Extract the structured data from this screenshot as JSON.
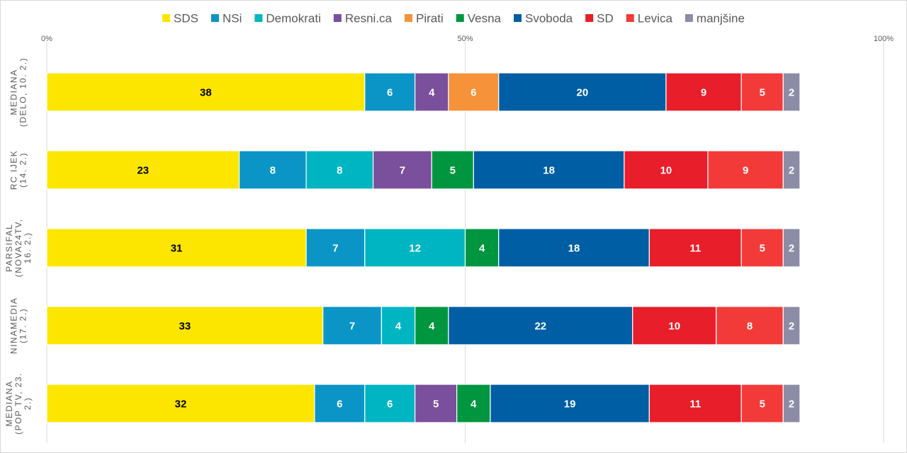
{
  "chart_data": {
    "type": "bar",
    "orientation": "horizontal",
    "stacked": true,
    "title": "",
    "xlabel": "",
    "ylabel": "",
    "xlim": [
      0,
      100
    ],
    "x_ticks": [
      "0%",
      "50%",
      "100%"
    ],
    "grid": true,
    "legend_position": "top",
    "categories": [
      [
        "MEDIANA",
        "(DELO, 10. 2.)"
      ],
      [
        "RC IJEK",
        "(14. 2.)"
      ],
      [
        "PARSIFAL",
        "(NOVA24TV,",
        "16. 2.)"
      ],
      [
        "NINAMEDIA",
        "(17. 2.)"
      ],
      [
        "MEDIANA",
        "(POP TV, 23.",
        "2.)"
      ]
    ],
    "series": [
      {
        "name": "SDS",
        "color": "#fce600",
        "label_color": "#000000",
        "values": [
          38,
          23,
          31,
          33,
          32
        ]
      },
      {
        "name": "NSi",
        "color": "#0b95c6",
        "label_color": "#ffffff",
        "values": [
          6,
          8,
          7,
          7,
          6
        ]
      },
      {
        "name": "Demokrati",
        "color": "#00b5c2",
        "label_color": "#ffffff",
        "values": [
          null,
          8,
          12,
          4,
          6
        ]
      },
      {
        "name": "Resni.ca",
        "color": "#7a4f9c",
        "label_color": "#ffffff",
        "values": [
          4,
          7,
          null,
          null,
          5
        ]
      },
      {
        "name": "Pirati",
        "color": "#f5923a",
        "label_color": "#ffffff",
        "values": [
          6,
          null,
          null,
          null,
          null
        ]
      },
      {
        "name": "Vesna",
        "color": "#009640",
        "label_color": "#ffffff",
        "values": [
          null,
          5,
          4,
          4,
          4
        ]
      },
      {
        "name": "Svoboda",
        "color": "#005ea4",
        "label_color": "#ffffff",
        "values": [
          20,
          18,
          18,
          22,
          19
        ]
      },
      {
        "name": "SD",
        "color": "#e81e2a",
        "label_color": "#ffffff",
        "values": [
          9,
          10,
          11,
          10,
          11
        ]
      },
      {
        "name": "Levica",
        "color": "#f23b38",
        "label_color": "#ffffff",
        "values": [
          5,
          9,
          5,
          8,
          5
        ]
      },
      {
        "name": "manjšine",
        "color": "#8c8ca6",
        "label_color": "#ffffff",
        "values": [
          2,
          2,
          2,
          2,
          2
        ]
      }
    ]
  }
}
